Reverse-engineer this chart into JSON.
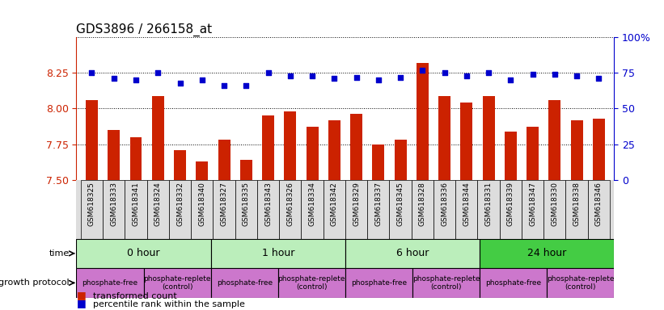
{
  "title": "GDS3896 / 266158_at",
  "samples": [
    "GSM618325",
    "GSM618333",
    "GSM618341",
    "GSM618324",
    "GSM618332",
    "GSM618340",
    "GSM618327",
    "GSM618335",
    "GSM618343",
    "GSM618326",
    "GSM618334",
    "GSM618342",
    "GSM618329",
    "GSM618337",
    "GSM618345",
    "GSM618328",
    "GSM618336",
    "GSM618344",
    "GSM618331",
    "GSM618339",
    "GSM618347",
    "GSM618330",
    "GSM618338",
    "GSM618346"
  ],
  "transformed_count": [
    8.06,
    7.85,
    7.8,
    8.09,
    7.71,
    7.63,
    7.78,
    7.64,
    7.95,
    7.98,
    7.87,
    7.92,
    7.96,
    7.75,
    7.78,
    8.32,
    8.09,
    8.04,
    8.09,
    7.84,
    7.87,
    8.06,
    7.92,
    7.93
  ],
  "percentile_rank": [
    75,
    71,
    70,
    75,
    68,
    70,
    66,
    66,
    75,
    73,
    73,
    71,
    72,
    70,
    72,
    77,
    75,
    73,
    75,
    70,
    74,
    74,
    73,
    71
  ],
  "ylim_left": [
    7.5,
    8.5
  ],
  "ylim_right": [
    0,
    100
  ],
  "yticks_left": [
    7.5,
    7.75,
    8.0,
    8.25
  ],
  "yticks_right": [
    0,
    25,
    50,
    75,
    100
  ],
  "bar_color": "#cc2200",
  "dot_color": "#0000cc",
  "bg_color": "#ffffff",
  "tick_label_bg": "#dddddd",
  "time_colors": [
    "#bbeebb",
    "#bbeebb",
    "#bbeebb",
    "#44cc44"
  ],
  "time_groups": [
    {
      "label": "0 hour",
      "start": 0,
      "end": 6
    },
    {
      "label": "1 hour",
      "start": 6,
      "end": 12
    },
    {
      "label": "6 hour",
      "start": 12,
      "end": 18
    },
    {
      "label": "24 hour",
      "start": 18,
      "end": 24
    }
  ],
  "protocol_color": "#cc77cc",
  "protocol_groups": [
    {
      "label": "phosphate-free",
      "start": 0,
      "end": 3
    },
    {
      "label": "phosphate-replete\n(control)",
      "start": 3,
      "end": 6
    },
    {
      "label": "phosphate-free",
      "start": 6,
      "end": 9
    },
    {
      "label": "phosphate-replete\n(control)",
      "start": 9,
      "end": 12
    },
    {
      "label": "phosphate-free",
      "start": 12,
      "end": 15
    },
    {
      "label": "phosphate-replete\n(control)",
      "start": 15,
      "end": 18
    },
    {
      "label": "phosphate-free",
      "start": 18,
      "end": 21
    },
    {
      "label": "phosphate-replete\n(control)",
      "start": 21,
      "end": 24
    }
  ],
  "legend_bar_label": "transformed count",
  "legend_dot_label": "percentile rank within the sample",
  "time_label": "time",
  "protocol_label": "growth protocol",
  "title_fontsize": 11,
  "tick_fontsize": 6.5,
  "row_label_fontsize": 8,
  "annotation_fontsize": 9,
  "proto_fontsize": 6.5,
  "legend_fontsize": 8
}
